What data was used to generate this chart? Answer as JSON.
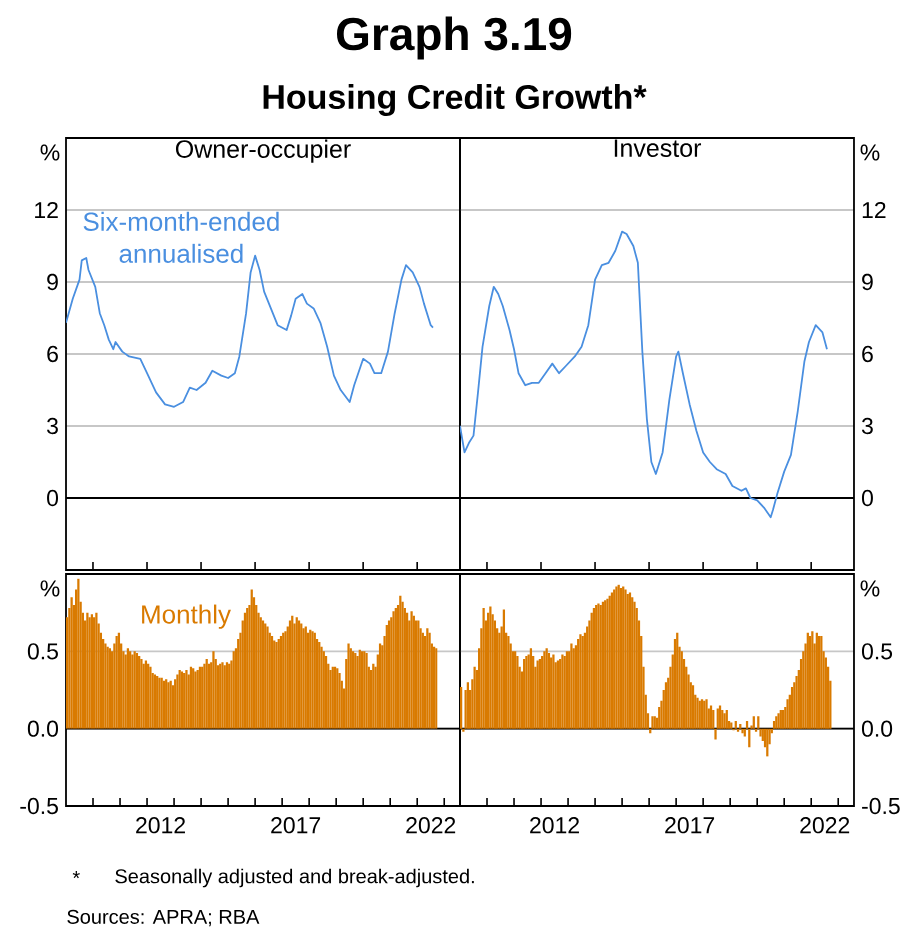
{
  "chart_data": [
    {
      "type": "other",
      "title": "Graph 3.19",
      "subtitle": "Housing Credit Growth*",
      "annotations": [
        "*",
        "Seasonally adjusted and break-adjusted.",
        "Sources: APRA; RBA"
      ]
    },
    {
      "type": "line",
      "title": "Owner-occupier",
      "ylabel": "%",
      "annotations": [
        "Six-month-ended annualised"
      ],
      "tick_labels": "y",
      "grid": "y",
      "xlim": [
        "2009-01",
        "2023-08"
      ],
      "ylim": [
        -3,
        15
      ],
      "yticks": [
        0,
        3,
        6,
        9,
        12
      ],
      "ref_lines": [
        {
          "axis": "y",
          "value": 0
        }
      ],
      "x": [
        "2009-01",
        "2009-04",
        "2009-07",
        "2009-08",
        "2009-10",
        "2009-11",
        "2010-02",
        "2010-04",
        "2010-06",
        "2010-08",
        "2010-10",
        "2010-11",
        "2011-02",
        "2011-05",
        "2011-10",
        "2012-01",
        "2012-05",
        "2012-09",
        "2013-01",
        "2013-05",
        "2013-08",
        "2013-11",
        "2014-03",
        "2014-06",
        "2014-10",
        "2015-01",
        "2015-04",
        "2015-06",
        "2015-09",
        "2015-11",
        "2016-01",
        "2016-03",
        "2016-05",
        "2016-08",
        "2016-11",
        "2017-03",
        "2017-05",
        "2017-07",
        "2017-10",
        "2017-12",
        "2018-03",
        "2018-06",
        "2018-09",
        "2018-12",
        "2019-03",
        "2019-07",
        "2019-09",
        "2020-01",
        "2020-04",
        "2020-06",
        "2020-09",
        "2020-12",
        "2021-03",
        "2021-06",
        "2021-08",
        "2021-11",
        "2022-02",
        "2022-04",
        "2022-07",
        "2022-08"
      ],
      "series": [
        {
          "color": "#4a8fe0",
          "values": [
            7.3,
            8.3,
            9.1,
            9.9,
            10.0,
            9.5,
            8.8,
            7.7,
            7.2,
            6.6,
            6.2,
            6.5,
            6.1,
            5.9,
            5.8,
            5.2,
            4.4,
            3.9,
            3.8,
            4.0,
            4.6,
            4.5,
            4.8,
            5.3,
            5.1,
            5.0,
            5.2,
            5.9,
            7.7,
            9.4,
            10.1,
            9.5,
            8.6,
            7.9,
            7.2,
            7.0,
            7.6,
            8.3,
            8.5,
            8.1,
            7.9,
            7.3,
            6.3,
            5.1,
            4.5,
            4.0,
            4.7,
            5.8,
            5.6,
            5.2,
            5.2,
            6.1,
            7.7,
            9.1,
            9.7,
            9.4,
            8.8,
            8.1,
            7.2,
            7.1
          ]
        }
      ]
    },
    {
      "type": "line",
      "title": "Investor",
      "ylabel": "%",
      "tick_labels": "y",
      "grid": "y",
      "xlim": [
        "2009-01",
        "2023-08"
      ],
      "ylim": [
        -3,
        15
      ],
      "yticks": [
        0,
        3,
        6,
        9,
        12
      ],
      "ref_lines": [
        {
          "axis": "y",
          "value": 0
        }
      ],
      "x": [
        "2009-01",
        "2009-03",
        "2009-05",
        "2009-07",
        "2009-09",
        "2009-11",
        "2010-02",
        "2010-04",
        "2010-06",
        "2010-08",
        "2010-11",
        "2011-01",
        "2011-03",
        "2011-06",
        "2011-09",
        "2011-12",
        "2012-03",
        "2012-06",
        "2012-09",
        "2012-12",
        "2013-04",
        "2013-07",
        "2013-10",
        "2014-01",
        "2014-04",
        "2014-07",
        "2014-10",
        "2015-01",
        "2015-03",
        "2015-06",
        "2015-08",
        "2015-10",
        "2015-12",
        "2016-02",
        "2016-04",
        "2016-07",
        "2016-10",
        "2017-01",
        "2017-02",
        "2017-04",
        "2017-07",
        "2017-10",
        "2018-01",
        "2018-04",
        "2018-07",
        "2018-11",
        "2019-02",
        "2019-06",
        "2019-08",
        "2019-10",
        "2020-01",
        "2020-04",
        "2020-07",
        "2020-08",
        "2020-10",
        "2021-01",
        "2021-04",
        "2021-07",
        "2021-10",
        "2021-12",
        "2022-03",
        "2022-06",
        "2022-08"
      ],
      "series": [
        {
          "color": "#4a8fe0",
          "values": [
            3.0,
            1.9,
            2.3,
            2.6,
            4.4,
            6.3,
            8.0,
            8.8,
            8.5,
            8.0,
            7.0,
            6.2,
            5.2,
            4.7,
            4.8,
            4.8,
            5.2,
            5.6,
            5.2,
            5.5,
            5.9,
            6.3,
            7.2,
            9.1,
            9.7,
            9.8,
            10.3,
            11.1,
            11.0,
            10.5,
            9.8,
            6.1,
            3.3,
            1.5,
            1.0,
            1.9,
            4.1,
            5.9,
            6.1,
            5.2,
            3.9,
            2.8,
            1.9,
            1.5,
            1.2,
            1.0,
            0.5,
            0.3,
            0.4,
            0.0,
            -0.1,
            -0.4,
            -0.8,
            -0.5,
            0.2,
            1.1,
            1.8,
            3.6,
            5.7,
            6.5,
            7.2,
            6.9,
            6.2
          ]
        }
      ]
    },
    {
      "type": "bar",
      "ylabel": "%",
      "annotations": [
        "Monthly"
      ],
      "grid": "y",
      "xlim": [
        "2009-01",
        "2023-08"
      ],
      "ylim": [
        -0.5,
        1.0
      ],
      "yticks": [
        -0.5,
        {
          "value": 0,
          "label": "0.0"
        },
        0.5
      ],
      "xticks": [
        {
          "value": "2010-01",
          "label": null
        },
        {
          "value": "2011-01",
          "label": null
        },
        {
          "value": "2012-01",
          "label": null
        },
        {
          "value": "2012-07",
          "label": "2012"
        },
        {
          "value": "2013-01",
          "label": null
        },
        {
          "value": "2014-01",
          "label": null
        },
        {
          "value": "2015-01",
          "label": null
        },
        {
          "value": "2016-01",
          "label": null
        },
        {
          "value": "2017-01",
          "label": null
        },
        {
          "value": "2017-07",
          "label": "2017"
        },
        {
          "value": "2018-01",
          "label": null
        },
        {
          "value": "2019-01",
          "label": null
        },
        {
          "value": "2020-01",
          "label": null
        },
        {
          "value": "2021-01",
          "label": null
        },
        {
          "value": "2022-01",
          "label": null
        },
        {
          "value": "2022-07",
          "label": "2022"
        },
        {
          "value": "2023-01",
          "label": null
        }
      ],
      "ref_lines": [
        {
          "axis": "y",
          "value": 0
        }
      ],
      "x": [
        "2009-01",
        "2009-02",
        "2009-03",
        "2009-04",
        "2009-05",
        "2009-06",
        "2009-07",
        "2009-08",
        "2009-09",
        "2009-10",
        "2009-11",
        "2009-12",
        "2010-01",
        "2010-02",
        "2010-03",
        "2010-04",
        "2010-05",
        "2010-06",
        "2010-07",
        "2010-08",
        "2010-09",
        "2010-10",
        "2010-11",
        "2010-12",
        "2011-01",
        "2011-02",
        "2011-03",
        "2011-04",
        "2011-05",
        "2011-06",
        "2011-07",
        "2011-08",
        "2011-09",
        "2011-10",
        "2011-11",
        "2011-12",
        "2012-01",
        "2012-02",
        "2012-03",
        "2012-04",
        "2012-05",
        "2012-06",
        "2012-07",
        "2012-08",
        "2012-09",
        "2012-10",
        "2012-11",
        "2012-12",
        "2013-01",
        "2013-02",
        "2013-03",
        "2013-04",
        "2013-05",
        "2013-06",
        "2013-07",
        "2013-08",
        "2013-09",
        "2013-10",
        "2013-11",
        "2013-12",
        "2014-01",
        "2014-02",
        "2014-03",
        "2014-04",
        "2014-05",
        "2014-06",
        "2014-07",
        "2014-08",
        "2014-09",
        "2014-10",
        "2014-11",
        "2014-12",
        "2015-01",
        "2015-02",
        "2015-03",
        "2015-04",
        "2015-05",
        "2015-06",
        "2015-07",
        "2015-08",
        "2015-09",
        "2015-10",
        "2015-11",
        "2015-12",
        "2016-01",
        "2016-02",
        "2016-03",
        "2016-04",
        "2016-05",
        "2016-06",
        "2016-07",
        "2016-08",
        "2016-09",
        "2016-10",
        "2016-11",
        "2016-12",
        "2017-01",
        "2017-02",
        "2017-03",
        "2017-04",
        "2017-05",
        "2017-06",
        "2017-07",
        "2017-08",
        "2017-09",
        "2017-10",
        "2017-11",
        "2017-12",
        "2018-01",
        "2018-02",
        "2018-03",
        "2018-04",
        "2018-05",
        "2018-06",
        "2018-07",
        "2018-08",
        "2018-09",
        "2018-10",
        "2018-11",
        "2018-12",
        "2019-01",
        "2019-02",
        "2019-03",
        "2019-04",
        "2019-05",
        "2019-06",
        "2019-07",
        "2019-08",
        "2019-09",
        "2019-10",
        "2019-11",
        "2019-12",
        "2020-01",
        "2020-02",
        "2020-03",
        "2020-04",
        "2020-05",
        "2020-06",
        "2020-07",
        "2020-08",
        "2020-09",
        "2020-10",
        "2020-11",
        "2020-12",
        "2021-01",
        "2021-02",
        "2021-03",
        "2021-04",
        "2021-05",
        "2021-06",
        "2021-07",
        "2021-08",
        "2021-09",
        "2021-10",
        "2021-11",
        "2021-12",
        "2022-01",
        "2022-02",
        "2022-03",
        "2022-04",
        "2022-05",
        "2022-06",
        "2022-07",
        "2022-08",
        "2022-09"
      ],
      "series": [
        {
          "color": "#d97a00",
          "values": [
            0.72,
            0.78,
            0.85,
            0.8,
            0.9,
            0.97,
            0.82,
            0.75,
            0.7,
            0.75,
            0.72,
            0.74,
            0.72,
            0.75,
            0.68,
            0.62,
            0.58,
            0.55,
            0.53,
            0.52,
            0.5,
            0.55,
            0.6,
            0.62,
            0.55,
            0.5,
            0.48,
            0.52,
            0.5,
            0.48,
            0.5,
            0.49,
            0.47,
            0.45,
            0.42,
            0.44,
            0.42,
            0.4,
            0.36,
            0.35,
            0.34,
            0.33,
            0.33,
            0.31,
            0.32,
            0.3,
            0.31,
            0.28,
            0.32,
            0.35,
            0.38,
            0.37,
            0.36,
            0.38,
            0.35,
            0.4,
            0.39,
            0.37,
            0.38,
            0.4,
            0.4,
            0.42,
            0.45,
            0.42,
            0.43,
            0.5,
            0.45,
            0.41,
            0.42,
            0.43,
            0.41,
            0.43,
            0.42,
            0.44,
            0.5,
            0.52,
            0.58,
            0.62,
            0.7,
            0.75,
            0.78,
            0.8,
            0.9,
            0.85,
            0.8,
            0.75,
            0.72,
            0.7,
            0.68,
            0.66,
            0.62,
            0.6,
            0.57,
            0.56,
            0.58,
            0.6,
            0.62,
            0.63,
            0.66,
            0.7,
            0.73,
            0.68,
            0.72,
            0.7,
            0.68,
            0.65,
            0.66,
            0.62,
            0.64,
            0.63,
            0.62,
            0.58,
            0.56,
            0.53,
            0.5,
            0.47,
            0.42,
            0.38,
            0.4,
            0.4,
            0.39,
            0.36,
            0.31,
            0.26,
            0.45,
            0.55,
            0.52,
            0.5,
            0.49,
            0.47,
            0.51,
            0.5,
            0.5,
            0.49,
            0.4,
            0.38,
            0.42,
            0.4,
            0.48,
            0.55,
            0.54,
            0.6,
            0.67,
            0.7,
            0.72,
            0.76,
            0.78,
            0.8,
            0.86,
            0.82,
            0.78,
            0.75,
            0.7,
            0.76,
            0.73,
            0.7,
            0.7,
            0.65,
            0.62,
            0.6,
            0.65,
            0.62,
            0.55,
            0.53,
            0.52
          ]
        }
      ]
    },
    {
      "type": "bar",
      "ylabel": "%",
      "grid": "y",
      "xlim": [
        "2009-01",
        "2023-08"
      ],
      "ylim": [
        -0.5,
        1.0
      ],
      "yticks": [
        -0.5,
        {
          "value": 0,
          "label": "0.0"
        },
        0.5
      ],
      "xticks": [
        {
          "value": "2010-01",
          "label": null
        },
        {
          "value": "2011-01",
          "label": null
        },
        {
          "value": "2012-01",
          "label": null
        },
        {
          "value": "2012-07",
          "label": "2012"
        },
        {
          "value": "2013-01",
          "label": null
        },
        {
          "value": "2014-01",
          "label": null
        },
        {
          "value": "2015-01",
          "label": null
        },
        {
          "value": "2016-01",
          "label": null
        },
        {
          "value": "2017-01",
          "label": null
        },
        {
          "value": "2017-07",
          "label": "2017"
        },
        {
          "value": "2018-01",
          "label": null
        },
        {
          "value": "2019-01",
          "label": null
        },
        {
          "value": "2020-01",
          "label": null
        },
        {
          "value": "2021-01",
          "label": null
        },
        {
          "value": "2022-01",
          "label": null
        },
        {
          "value": "2022-07",
          "label": "2022"
        },
        {
          "value": "2023-01",
          "label": null
        }
      ],
      "ref_lines": [
        {
          "axis": "y",
          "value": 0
        }
      ],
      "x": [
        "2009-01",
        "2009-02",
        "2009-03",
        "2009-04",
        "2009-05",
        "2009-06",
        "2009-07",
        "2009-08",
        "2009-09",
        "2009-10",
        "2009-11",
        "2009-12",
        "2010-01",
        "2010-02",
        "2010-03",
        "2010-04",
        "2010-05",
        "2010-06",
        "2010-07",
        "2010-08",
        "2010-09",
        "2010-10",
        "2010-11",
        "2010-12",
        "2011-01",
        "2011-02",
        "2011-03",
        "2011-04",
        "2011-05",
        "2011-06",
        "2011-07",
        "2011-08",
        "2011-09",
        "2011-10",
        "2011-11",
        "2011-12",
        "2012-01",
        "2012-02",
        "2012-03",
        "2012-04",
        "2012-05",
        "2012-06",
        "2012-07",
        "2012-08",
        "2012-09",
        "2012-10",
        "2012-11",
        "2012-12",
        "2013-01",
        "2013-02",
        "2013-03",
        "2013-04",
        "2013-05",
        "2013-06",
        "2013-07",
        "2013-08",
        "2013-09",
        "2013-10",
        "2013-11",
        "2013-12",
        "2014-01",
        "2014-02",
        "2014-03",
        "2014-04",
        "2014-05",
        "2014-06",
        "2014-07",
        "2014-08",
        "2014-09",
        "2014-10",
        "2014-11",
        "2014-12",
        "2015-01",
        "2015-02",
        "2015-03",
        "2015-04",
        "2015-05",
        "2015-06",
        "2015-07",
        "2015-08",
        "2015-09",
        "2015-10",
        "2015-11",
        "2015-12",
        "2016-01",
        "2016-02",
        "2016-03",
        "2016-04",
        "2016-05",
        "2016-06",
        "2016-07",
        "2016-08",
        "2016-09",
        "2016-10",
        "2016-11",
        "2016-12",
        "2017-01",
        "2017-02",
        "2017-03",
        "2017-04",
        "2017-05",
        "2017-06",
        "2017-07",
        "2017-08",
        "2017-09",
        "2017-10",
        "2017-11",
        "2017-12",
        "2018-01",
        "2018-02",
        "2018-03",
        "2018-04",
        "2018-05",
        "2018-06",
        "2018-07",
        "2018-08",
        "2018-09",
        "2018-10",
        "2018-11",
        "2018-12",
        "2019-01",
        "2019-02",
        "2019-03",
        "2019-04",
        "2019-05",
        "2019-06",
        "2019-07",
        "2019-08",
        "2019-09",
        "2019-10",
        "2019-11",
        "2019-12",
        "2020-01",
        "2020-02",
        "2020-03",
        "2020-04",
        "2020-05",
        "2020-06",
        "2020-07",
        "2020-08",
        "2020-09",
        "2020-10",
        "2020-11",
        "2020-12",
        "2021-01",
        "2021-02",
        "2021-03",
        "2021-04",
        "2021-05",
        "2021-06",
        "2021-07",
        "2021-08",
        "2021-09",
        "2021-10",
        "2021-11",
        "2021-12",
        "2022-01",
        "2022-02",
        "2022-03",
        "2022-04",
        "2022-05",
        "2022-06",
        "2022-07",
        "2022-08",
        "2022-09"
      ],
      "series": [
        {
          "color": "#d97a00",
          "values": [
            0.27,
            -0.02,
            0.25,
            0.3,
            0.25,
            0.32,
            0.4,
            0.38,
            0.52,
            0.65,
            0.78,
            0.7,
            0.75,
            0.79,
            0.74,
            0.7,
            0.65,
            0.62,
            0.66,
            0.77,
            0.62,
            0.6,
            0.55,
            0.5,
            0.5,
            0.47,
            0.4,
            0.37,
            0.45,
            0.47,
            0.48,
            0.52,
            0.47,
            0.4,
            0.44,
            0.45,
            0.47,
            0.5,
            0.52,
            0.49,
            0.46,
            0.48,
            0.43,
            0.44,
            0.45,
            0.48,
            0.47,
            0.5,
            0.5,
            0.55,
            0.52,
            0.54,
            0.58,
            0.61,
            0.6,
            0.62,
            0.66,
            0.7,
            0.75,
            0.78,
            0.8,
            0.81,
            0.8,
            0.82,
            0.83,
            0.84,
            0.86,
            0.88,
            0.9,
            0.92,
            0.93,
            0.91,
            0.92,
            0.9,
            0.87,
            0.88,
            0.85,
            0.82,
            0.78,
            0.7,
            0.6,
            0.4,
            0.22,
            0.1,
            -0.03,
            0.08,
            0.08,
            0.07,
            0.14,
            0.18,
            0.25,
            0.3,
            0.33,
            0.4,
            0.48,
            0.58,
            0.62,
            0.53,
            0.5,
            0.45,
            0.4,
            0.35,
            0.3,
            0.28,
            0.22,
            0.2,
            0.18,
            0.19,
            0.18,
            0.19,
            0.13,
            0.15,
            0.12,
            -0.07,
            0.13,
            0.15,
            0.12,
            0.1,
            0.12,
            0.05,
            0.04,
            -0.01,
            0.05,
            -0.02,
            0.03,
            -0.03,
            -0.05,
            0.05,
            -0.12,
            0.02,
            0.08,
            -0.02,
            0.08,
            -0.05,
            -0.08,
            -0.12,
            -0.18,
            -0.1,
            -0.03,
            0.05,
            0.08,
            0.1,
            0.12,
            0.12,
            0.14,
            0.19,
            0.22,
            0.27,
            0.3,
            0.34,
            0.38,
            0.45,
            0.5,
            0.55,
            0.62,
            0.6,
            0.63,
            0.55,
            0.62,
            0.6,
            0.6,
            0.5,
            0.46,
            0.4,
            0.31
          ]
        }
      ]
    }
  ]
}
